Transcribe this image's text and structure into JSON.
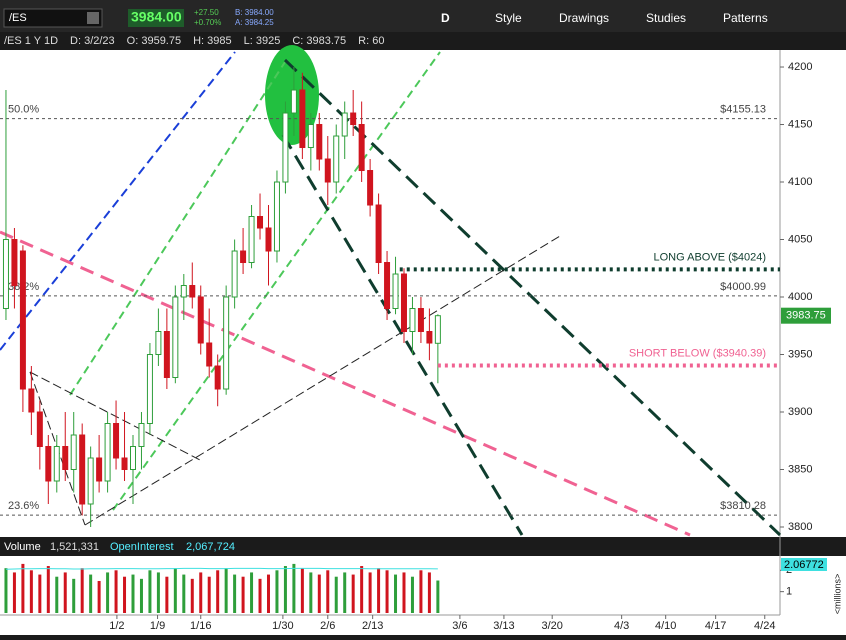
{
  "toolbar": {
    "symbol": "/ES",
    "last": "3984.00",
    "change": "+27.50",
    "change_pct": "+0.70%",
    "bid": "B: 3984.00",
    "ask": "A: 3984.25",
    "period": "D",
    "buttons": [
      "Style",
      "Drawings",
      "Studies",
      "Patterns"
    ]
  },
  "info": [
    "/ES 1 Y 1D",
    "D: 3/2/23",
    "O: 3959.75",
    "H: 3985",
    "L: 3925",
    "C: 3983.75",
    "R: 60"
  ],
  "chart_data": {
    "type": "candlestick",
    "candles": [
      {
        "open": 3990,
        "high": 4180,
        "low": 3980,
        "close": 4050
      },
      {
        "open": 4050,
        "high": 4060,
        "low": 3990,
        "close": 4010
      },
      {
        "open": 4040,
        "high": 4045,
        "low": 3900,
        "close": 3920
      },
      {
        "open": 3920,
        "high": 3940,
        "low": 3880,
        "close": 3900
      },
      {
        "open": 3900,
        "high": 3910,
        "low": 3850,
        "close": 3870
      },
      {
        "open": 3870,
        "high": 3880,
        "low": 3820,
        "close": 3840
      },
      {
        "open": 3840,
        "high": 3880,
        "low": 3830,
        "close": 3870
      },
      {
        "open": 3870,
        "high": 3900,
        "low": 3840,
        "close": 3850
      },
      {
        "open": 3850,
        "high": 3900,
        "low": 3830,
        "close": 3880
      },
      {
        "open": 3880,
        "high": 3890,
        "low": 3810,
        "close": 3820
      },
      {
        "open": 3820,
        "high": 3870,
        "low": 3800,
        "close": 3860
      },
      {
        "open": 3860,
        "high": 3880,
        "low": 3830,
        "close": 3840
      },
      {
        "open": 3840,
        "high": 3900,
        "low": 3830,
        "close": 3890
      },
      {
        "open": 3890,
        "high": 3910,
        "low": 3850,
        "close": 3860
      },
      {
        "open": 3860,
        "high": 3900,
        "low": 3840,
        "close": 3850
      },
      {
        "open": 3850,
        "high": 3880,
        "low": 3820,
        "close": 3870
      },
      {
        "open": 3870,
        "high": 3900,
        "low": 3850,
        "close": 3890
      },
      {
        "open": 3890,
        "high": 3960,
        "low": 3880,
        "close": 3950
      },
      {
        "open": 3950,
        "high": 3990,
        "low": 3940,
        "close": 3970
      },
      {
        "open": 3970,
        "high": 3990,
        "low": 3920,
        "close": 3930
      },
      {
        "open": 3930,
        "high": 4010,
        "low": 3925,
        "close": 4000
      },
      {
        "open": 4000,
        "high": 4020,
        "low": 3980,
        "close": 4010
      },
      {
        "open": 4010,
        "high": 4030,
        "low": 3990,
        "close": 4000
      },
      {
        "open": 4000,
        "high": 4010,
        "low": 3950,
        "close": 3960
      },
      {
        "open": 3960,
        "high": 3990,
        "low": 3930,
        "close": 3940
      },
      {
        "open": 3940,
        "high": 3950,
        "low": 3905,
        "close": 3920
      },
      {
        "open": 3920,
        "high": 4010,
        "low": 3915,
        "close": 4000
      },
      {
        "open": 4000,
        "high": 4050,
        "low": 3990,
        "close": 4040
      },
      {
        "open": 4040,
        "high": 4060,
        "low": 4020,
        "close": 4030
      },
      {
        "open": 4030,
        "high": 4080,
        "low": 4025,
        "close": 4070
      },
      {
        "open": 4070,
        "high": 4090,
        "low": 4050,
        "close": 4060
      },
      {
        "open": 4060,
        "high": 4080,
        "low": 4010,
        "close": 4040
      },
      {
        "open": 4040,
        "high": 4110,
        "low": 4030,
        "close": 4100
      },
      {
        "open": 4100,
        "high": 4170,
        "low": 4090,
        "close": 4160
      },
      {
        "open": 4160,
        "high": 4200,
        "low": 4140,
        "close": 4180
      },
      {
        "open": 4180,
        "high": 4195,
        "low": 4120,
        "close": 4130
      },
      {
        "open": 4130,
        "high": 4160,
        "low": 4110,
        "close": 4150
      },
      {
        "open": 4150,
        "high": 4160,
        "low": 4110,
        "close": 4120
      },
      {
        "open": 4120,
        "high": 4140,
        "low": 4080,
        "close": 4100
      },
      {
        "open": 4100,
        "high": 4150,
        "low": 4090,
        "close": 4140
      },
      {
        "open": 4140,
        "high": 4170,
        "low": 4120,
        "close": 4160
      },
      {
        "open": 4160,
        "high": 4180,
        "low": 4140,
        "close": 4150
      },
      {
        "open": 4150,
        "high": 4170,
        "low": 4100,
        "close": 4110
      },
      {
        "open": 4110,
        "high": 4120,
        "low": 4070,
        "close": 4080
      },
      {
        "open": 4080,
        "high": 4090,
        "low": 4020,
        "close": 4030
      },
      {
        "open": 4030,
        "high": 4040,
        "low": 3980,
        "close": 3990
      },
      {
        "open": 3990,
        "high": 4035,
        "low": 3985,
        "close": 4020
      },
      {
        "open": 4020,
        "high": 4025,
        "low": 3960,
        "close": 3970
      },
      {
        "open": 3970,
        "high": 4000,
        "low": 3950,
        "close": 3990
      },
      {
        "open": 3990,
        "high": 4000,
        "low": 3960,
        "close": 3970
      },
      {
        "open": 3970,
        "high": 3990,
        "low": 3945,
        "close": 3960
      },
      {
        "open": 3959.75,
        "high": 3985,
        "low": 3925,
        "close": 3983.75
      }
    ],
    "up_color": "#2e9e3a",
    "down_color": "#d0141e",
    "xlim": [
      -0.35,
      91.4
    ],
    "xticks": [
      {
        "value": 13.1,
        "label": "1/2"
      },
      {
        "value": 17.9,
        "label": "1/9"
      },
      {
        "value": 23.0,
        "label": "1/16"
      },
      {
        "value": 32.7,
        "label": "1/30"
      },
      {
        "value": 38.0,
        "label": "2/6"
      },
      {
        "value": 43.3,
        "label": "2/13"
      },
      {
        "value": 53.6,
        "label": "3/6"
      },
      {
        "value": 58.8,
        "label": "3/13"
      },
      {
        "value": 64.5,
        "label": "3/20"
      },
      {
        "value": 72.7,
        "label": "4/3"
      },
      {
        "value": 77.9,
        "label": "4/10"
      },
      {
        "value": 83.8,
        "label": "4/17"
      },
      {
        "value": 89.6,
        "label": "4/24"
      }
    ],
    "ylim": [
      3791.3,
      4214.8
    ],
    "yticks": [
      3800,
      3850,
      3900,
      3950,
      4000,
      4050,
      4100,
      4150,
      4200
    ],
    "last_price": 3983.75,
    "fib_levels": [
      {
        "pct": "50.0%",
        "value": 4155.13,
        "label": "$4155.13"
      },
      {
        "pct": "38.2%",
        "value": 4000.99,
        "label": "$4000.99"
      },
      {
        "pct": "23.6%",
        "value": 3810.28,
        "label": "$3810.28"
      }
    ],
    "levels": [
      {
        "text": "LONG ABOVE ($4024)",
        "value": 4024,
        "color": "#0f3d2e"
      },
      {
        "text": "SHORT BELOW ($3940.39)",
        "value": 3940.39,
        "color": "#f06292"
      }
    ],
    "volume": {
      "title": "Volume",
      "value_label": "1,521,331",
      "oi_title": "OpenInterest",
      "oi_label": "2,067,724",
      "oi_axis_label": "2.06772",
      "unit": "<millions>",
      "values": [
        2.1,
        1.9,
        2.3,
        2.0,
        1.8,
        2.2,
        1.7,
        1.9,
        1.6,
        2.1,
        1.8,
        1.5,
        1.9,
        2.0,
        1.7,
        1.8,
        1.6,
        2.0,
        1.9,
        1.7,
        2.1,
        1.8,
        1.6,
        1.9,
        1.7,
        2.0,
        2.1,
        1.8,
        1.7,
        1.9,
        1.6,
        1.8,
        2.0,
        2.2,
        2.3,
        2.1,
        1.9,
        1.8,
        2.0,
        1.7,
        1.9,
        1.8,
        2.2,
        1.9,
        2.1,
        2.0,
        1.8,
        1.9,
        1.7,
        2.0,
        1.9,
        1.521331
      ],
      "oi": [
        2.05,
        2.06,
        2.07,
        2.07,
        2.08,
        2.08,
        2.07,
        2.07,
        2.06,
        2.06,
        2.07,
        2.07,
        2.07,
        2.08,
        2.08,
        2.08,
        2.07,
        2.07,
        2.07,
        2.08,
        2.08,
        2.09,
        2.09,
        2.09,
        2.08,
        2.08,
        2.08,
        2.09,
        2.09,
        2.09,
        2.09,
        2.08,
        2.08,
        2.08,
        2.09,
        2.09,
        2.09,
        2.09,
        2.08,
        2.08,
        2.08,
        2.08,
        2.08,
        2.07,
        2.07,
        2.07,
        2.07,
        2.07,
        2.07,
        2.07,
        2.07,
        2.067724
      ],
      "ylim": [
        0,
        2.67
      ],
      "yticks": [
        1,
        2
      ]
    }
  }
}
